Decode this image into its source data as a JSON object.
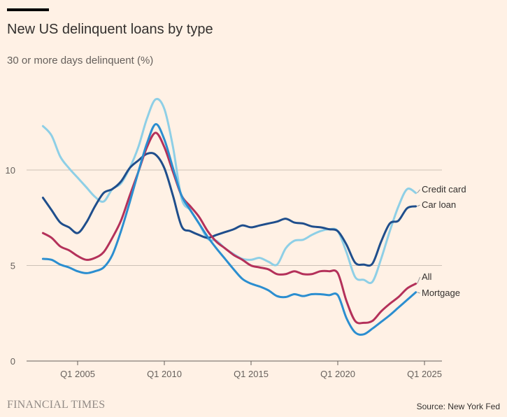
{
  "header": {
    "title": "New US delinquent loans by type",
    "subtitle": "30 or more days delinquent (%)"
  },
  "footer": {
    "logo": "FINANCIAL TIMES",
    "source": "Source: New York Fed"
  },
  "colors": {
    "background": "#fff1e5",
    "grid": "#ccc1b7",
    "axis": "#66605c"
  },
  "chart_data": {
    "type": "line",
    "title": "New US delinquent loans by type",
    "ylabel": "30 or more days delinquent (%)",
    "xlim": [
      2002.1,
      2026.0
    ],
    "ylim": [
      0,
      14
    ],
    "yticks": [
      0,
      5,
      10
    ],
    "ytick_labels": [
      "0",
      "5",
      "10"
    ],
    "xticks": [
      2005,
      2010,
      2015,
      2020,
      2025
    ],
    "xtick_labels": [
      "Q1 2005",
      "Q1 2010",
      "Q1 2015",
      "Q1 2020",
      "Q1 2025"
    ],
    "grid": "horizontal",
    "legend": "direct labels at line ends (right)",
    "x": [
      2003,
      2003.5,
      2004,
      2004.5,
      2005,
      2005.5,
      2006,
      2006.5,
      2007,
      2007.5,
      2008,
      2008.5,
      2009,
      2009.5,
      2010,
      2010.5,
      2011,
      2011.5,
      2012,
      2012.5,
      2013,
      2013.5,
      2014,
      2014.5,
      2015,
      2015.5,
      2016,
      2016.5,
      2017,
      2017.5,
      2018,
      2018.5,
      2019,
      2019.5,
      2020,
      2020.5,
      2021,
      2021.5,
      2022,
      2022.5,
      2023,
      2023.5,
      2024,
      2024.5
    ],
    "series": [
      {
        "name": "Credit card",
        "color": "#8ecfe6",
        "values": [
          12.3,
          11.8,
          10.7,
          10.1,
          9.6,
          9.1,
          8.6,
          8.35,
          9.0,
          9.3,
          10.1,
          11.2,
          12.7,
          13.7,
          13.2,
          11.2,
          8.5,
          7.9,
          7.2,
          6.4,
          6.3,
          5.9,
          5.6,
          5.35,
          5.3,
          5.4,
          5.2,
          5.05,
          5.9,
          6.3,
          6.35,
          6.6,
          6.8,
          6.9,
          6.8,
          5.7,
          4.4,
          4.25,
          4.15,
          5.35,
          6.8,
          8.1,
          9.0,
          8.8
        ]
      },
      {
        "name": "Car loan",
        "color": "#1f4e8c",
        "values": [
          8.55,
          7.9,
          7.25,
          7.0,
          6.7,
          7.25,
          8.1,
          8.8,
          9.0,
          9.4,
          10.1,
          10.5,
          10.85,
          10.8,
          10.1,
          8.65,
          7.05,
          6.8,
          6.6,
          6.45,
          6.6,
          6.75,
          6.9,
          7.1,
          7.0,
          7.1,
          7.2,
          7.3,
          7.45,
          7.25,
          7.2,
          7.05,
          7.0,
          6.9,
          6.8,
          6.1,
          5.15,
          5.05,
          5.1,
          6.25,
          7.2,
          7.35,
          8.0,
          8.1
        ]
      },
      {
        "name": "All",
        "color": "#b4315a",
        "values": [
          6.7,
          6.45,
          6.0,
          5.8,
          5.5,
          5.3,
          5.4,
          5.7,
          6.45,
          7.35,
          8.65,
          9.9,
          11.2,
          11.95,
          11.2,
          9.9,
          8.65,
          8.1,
          7.55,
          6.8,
          6.25,
          5.9,
          5.55,
          5.3,
          5.0,
          4.9,
          4.8,
          4.55,
          4.55,
          4.7,
          4.55,
          4.55,
          4.7,
          4.7,
          4.6,
          3.15,
          2.1,
          2.0,
          2.1,
          2.6,
          3.0,
          3.35,
          3.8,
          4.05
        ]
      },
      {
        "name": "Mortgage",
        "color": "#2b8ed0",
        "values": [
          5.35,
          5.3,
          5.05,
          4.9,
          4.7,
          4.6,
          4.7,
          4.9,
          5.55,
          6.8,
          8.3,
          9.9,
          11.4,
          12.4,
          11.6,
          10.1,
          8.65,
          7.9,
          7.2,
          6.5,
          5.9,
          5.35,
          4.8,
          4.3,
          4.05,
          3.9,
          3.7,
          3.4,
          3.35,
          3.5,
          3.4,
          3.5,
          3.5,
          3.45,
          3.45,
          2.25,
          1.5,
          1.4,
          1.7,
          2.05,
          2.4,
          2.8,
          3.2,
          3.6
        ]
      }
    ]
  }
}
